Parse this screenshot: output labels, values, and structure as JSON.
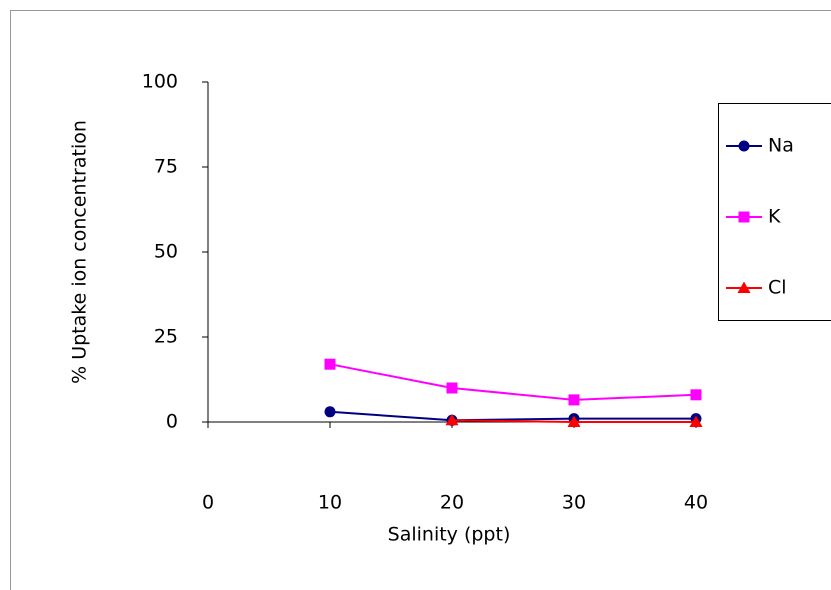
{
  "chart_data": {
    "type": "line",
    "x_label": "Salinity (ppt)",
    "y_label": "% Uptake ion concentration",
    "x": [
      10,
      20,
      30,
      40
    ],
    "series": [
      {
        "name": "Na",
        "color": "#000080",
        "marker": "circle",
        "values": [
          3,
          0.5,
          1,
          1
        ]
      },
      {
        "name": "K",
        "color": "#ff00ff",
        "marker": "square",
        "values": [
          17,
          10,
          6.5,
          8
        ]
      },
      {
        "name": "Cl",
        "color": "#ff0000",
        "marker": "triangle",
        "values": [
          null,
          0.5,
          0,
          0
        ]
      }
    ],
    "xlim": [
      0,
      40
    ],
    "xticks": [
      0,
      10,
      20,
      30,
      40
    ],
    "ylim": [
      0,
      100
    ],
    "yticks": [
      0,
      25,
      50,
      75,
      100
    ],
    "legend": "right"
  }
}
